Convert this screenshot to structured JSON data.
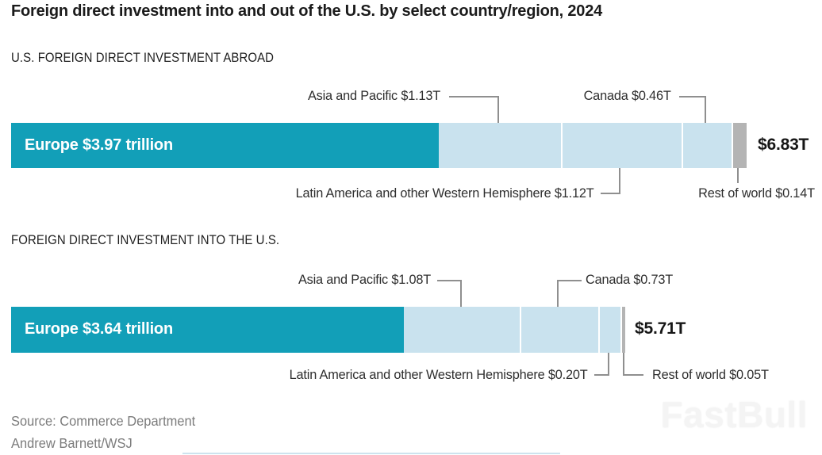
{
  "title": "Foreign direct investment into and out of the U.S. by select country/region, 2024",
  "colors": {
    "europe_teal": "#129fb8",
    "region_light_blue": "#c9e2ee",
    "rest_gray": "#b4b4b4",
    "connector_gray": "#8f8f8f",
    "text_dark": "#1b1b1b",
    "source_gray": "#7c7c7c"
  },
  "chart_data": [
    {
      "type": "bar",
      "orientation": "horizontal-stacked",
      "title": "U.S. FOREIGN DIRECT INVESTMENT ABROAD",
      "unit": "trillion USD",
      "total_value": 6.83,
      "total_label": "$6.83T",
      "segments": [
        {
          "name": "Europe",
          "value": 3.97,
          "label": "Europe $3.97 trillion",
          "color_key": "europe_teal",
          "inline_label": true
        },
        {
          "name": "Asia and Pacific",
          "value": 1.13,
          "label": "Asia and Pacific $1.13T",
          "color_key": "region_light_blue"
        },
        {
          "name": "Latin America and other Western Hemisphere",
          "value": 1.12,
          "label": "Latin America and other Western Hemisphere $1.12T",
          "color_key": "region_light_blue"
        },
        {
          "name": "Canada",
          "value": 0.46,
          "label": "Canada $0.46T",
          "color_key": "region_light_blue"
        },
        {
          "name": "Rest of world",
          "value": 0.14,
          "label": "Rest of world $0.14T",
          "color_key": "rest_gray"
        }
      ]
    },
    {
      "type": "bar",
      "orientation": "horizontal-stacked",
      "title": "FOREIGN DIRECT INVESTMENT INTO THE U.S.",
      "unit": "trillion USD",
      "total_value": 5.71,
      "total_label": "$5.71T",
      "segments": [
        {
          "name": "Europe",
          "value": 3.64,
          "label": "Europe $3.64 trillion",
          "color_key": "europe_teal",
          "inline_label": true
        },
        {
          "name": "Asia and Pacific",
          "value": 1.08,
          "label": "Asia and Pacific $1.08T",
          "color_key": "region_light_blue"
        },
        {
          "name": "Canada",
          "value": 0.73,
          "label": "Canada $0.73T",
          "color_key": "region_light_blue"
        },
        {
          "name": "Latin America and other Western Hemisphere",
          "value": 0.2,
          "label": "Latin America and other Western Hemisphere $0.20T",
          "color_key": "region_light_blue"
        },
        {
          "name": "Rest of world",
          "value": 0.05,
          "label": "Rest of world $0.05T",
          "color_key": "rest_gray"
        }
      ]
    }
  ],
  "source": {
    "line1": "Source: Commerce Department",
    "line2": "Andrew Barnett/WSJ"
  },
  "watermark": "FastBull"
}
